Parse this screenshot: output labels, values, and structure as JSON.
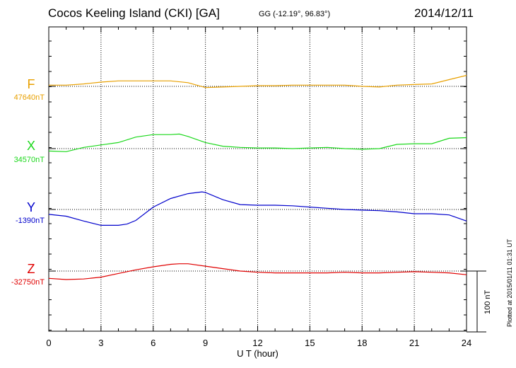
{
  "header": {
    "title": "Cocos Keeling Island (CKI)  [GA]",
    "coords": "GG (-12.19°,  96.83°)",
    "date": "2014/12/11"
  },
  "footer": {
    "plotted": "Plotted at 2015/01/11 01:31  UT"
  },
  "colors": {
    "F": "#e8a000",
    "X": "#1bd81b",
    "Y": "#0000cc",
    "Z": "#e00000",
    "grid": "#000000",
    "axis": "#000000"
  },
  "chart_data": {
    "type": "line",
    "title": "",
    "xlabel": "U T (hour)",
    "ylabel": "",
    "xlim": [
      0,
      24
    ],
    "xticks": [
      "0",
      "3",
      "6",
      "9",
      "12",
      "15",
      "18",
      "21",
      "24"
    ],
    "grid": true,
    "scale_bar": {
      "value": 100,
      "label": "100 nT"
    },
    "series": [
      {
        "name": "F",
        "baseline_label": "47640nT",
        "baseline_nT": 47640,
        "x": [
          0,
          1,
          2,
          3,
          4,
          5,
          6,
          7,
          8,
          8.5,
          9,
          10,
          11,
          12,
          13,
          14,
          15,
          16,
          17,
          18,
          19,
          20,
          21,
          22,
          23,
          24
        ],
        "y": [
          2,
          2,
          4,
          7,
          9,
          9,
          9,
          9,
          6,
          2,
          -2,
          -1,
          0,
          1,
          1,
          2,
          2,
          2,
          2,
          0,
          -1,
          2,
          3,
          4,
          11,
          18
        ]
      },
      {
        "name": "X",
        "baseline_label": "34570nT",
        "baseline_nT": 34570,
        "x": [
          0,
          1,
          2,
          3,
          4,
          5,
          6,
          7,
          7.5,
          8,
          9,
          10,
          11,
          12,
          13,
          14,
          15,
          16,
          17,
          18,
          19,
          20,
          21,
          22,
          23,
          24
        ],
        "y": [
          -4,
          -5,
          2,
          6,
          10,
          19,
          23,
          23,
          24,
          20,
          10,
          4,
          2,
          1,
          1,
          0,
          1,
          2,
          0,
          -1,
          0,
          7,
          8,
          8,
          17,
          18
        ]
      },
      {
        "name": "Y",
        "baseline_label": "-1390nT",
        "baseline_nT": -1390,
        "x": [
          0,
          1,
          2,
          3,
          4,
          4.5,
          5,
          6,
          7,
          8,
          8.8,
          9,
          10,
          11,
          12,
          13,
          14,
          15,
          16,
          17,
          18,
          19,
          20,
          21,
          22,
          23,
          24
        ],
        "y": [
          -8,
          -11,
          -19,
          -26,
          -26,
          -24,
          -18,
          4,
          18,
          26,
          29,
          28,
          16,
          8,
          7,
          7,
          6,
          4,
          2,
          0,
          -1,
          -2,
          -4,
          -7,
          -7,
          -9,
          -19
        ]
      },
      {
        "name": "Z",
        "baseline_label": "-32750nT",
        "baseline_nT": -32750,
        "x": [
          0,
          1,
          2,
          3,
          4,
          5,
          6,
          7,
          7.5,
          8,
          9,
          10,
          11,
          12,
          13,
          14,
          15,
          16,
          17,
          18,
          19,
          20,
          21,
          22,
          23,
          24
        ],
        "y": [
          -12,
          -14,
          -13,
          -10,
          -4,
          2,
          7,
          11,
          12,
          12,
          8,
          4,
          0,
          -2,
          -3,
          -3,
          -3,
          -3,
          -2,
          -3,
          -3,
          -2,
          -1,
          -2,
          -3,
          -6
        ]
      }
    ]
  }
}
